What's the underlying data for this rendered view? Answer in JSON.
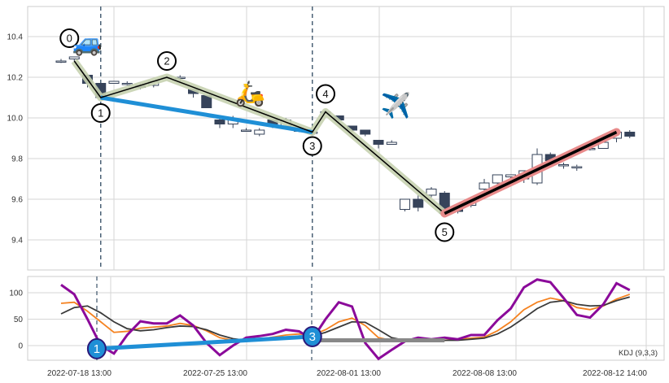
{
  "chart_data": [
    {
      "type": "candlestick",
      "ylim": [
        9.22,
        10.55
      ],
      "yticks": [
        "9.4",
        "9.6",
        "9.8",
        "10.0",
        "10.2",
        "10.4"
      ],
      "grid": true,
      "candles": [
        [
          10.28,
          10.28,
          10.29,
          10.27
        ],
        [
          10.29,
          10.3,
          10.3,
          10.28
        ],
        [
          10.21,
          10.17,
          10.21,
          10.15
        ],
        [
          10.17,
          10.1,
          10.17,
          10.09
        ],
        [
          10.17,
          10.18,
          10.18,
          10.17
        ],
        [
          10.17,
          10.17,
          10.18,
          10.16
        ],
        [
          10.16,
          10.15,
          10.17,
          10.14
        ],
        [
          10.16,
          10.18,
          10.18,
          10.15
        ],
        [
          10.2,
          10.2,
          10.21,
          10.19
        ],
        [
          10.2,
          10.2,
          10.21,
          10.18
        ],
        [
          10.14,
          10.12,
          10.14,
          10.1
        ],
        [
          10.11,
          10.05,
          10.11,
          10.05
        ],
        [
          9.99,
          9.97,
          10.0,
          9.95
        ],
        [
          9.97,
          9.99,
          10.01,
          9.95
        ],
        [
          9.94,
          9.94,
          9.95,
          9.94
        ],
        [
          9.92,
          9.94,
          9.95,
          9.91
        ],
        [
          9.99,
          9.96,
          9.99,
          9.95
        ],
        [
          9.96,
          9.99,
          10.0,
          9.95
        ],
        [
          9.94,
          9.94,
          9.95,
          9.93
        ],
        [
          9.93,
          9.93,
          9.94,
          9.92
        ],
        [
          10.03,
          10.03,
          10.04,
          10.02
        ],
        [
          10.01,
          9.99,
          10.01,
          9.98
        ],
        [
          9.96,
          9.94,
          9.96,
          9.93
        ],
        [
          9.94,
          9.92,
          9.94,
          9.91
        ],
        [
          9.89,
          9.87,
          9.89,
          9.85
        ],
        [
          9.87,
          9.88,
          9.89,
          9.87
        ],
        [
          9.55,
          9.6,
          9.6,
          9.54
        ],
        [
          9.6,
          9.56,
          9.62,
          9.54
        ],
        [
          9.62,
          9.65,
          9.66,
          9.61
        ],
        [
          9.63,
          9.53,
          9.64,
          9.52
        ],
        [
          9.55,
          9.54,
          9.57,
          9.53
        ],
        [
          9.57,
          9.59,
          9.61,
          9.56
        ],
        [
          9.65,
          9.68,
          9.7,
          9.64
        ],
        [
          9.68,
          9.72,
          9.72,
          9.66
        ],
        [
          9.71,
          9.72,
          9.72,
          9.7
        ],
        [
          9.7,
          9.74,
          9.74,
          9.68
        ],
        [
          9.68,
          9.82,
          9.85,
          9.67
        ],
        [
          9.82,
          9.79,
          9.83,
          9.78
        ],
        [
          9.77,
          9.77,
          9.78,
          9.75
        ],
        [
          9.76,
          9.76,
          9.77,
          9.74
        ],
        [
          9.85,
          9.85,
          9.86,
          9.84
        ],
        [
          9.85,
          9.88,
          9.88,
          9.85
        ],
        [
          9.9,
          9.93,
          9.94,
          9.88
        ],
        [
          9.93,
          9.91,
          9.94,
          9.9
        ]
      ],
      "pivots": [
        {
          "label": "0",
          "i": 1,
          "v": 10.28
        },
        {
          "label": "1",
          "i": 3,
          "v": 10.1
        },
        {
          "label": "2",
          "i": 8,
          "v": 10.2
        },
        {
          "label": "3",
          "i": 19,
          "v": 9.93
        },
        {
          "label": "4",
          "i": 20,
          "v": 10.03
        },
        {
          "label": "5",
          "i": 29,
          "v": 9.53
        }
      ],
      "trend_end": {
        "i": 42,
        "v": 9.93
      },
      "blue_line": [
        1,
        3
      ],
      "red_line": {
        "from": 5
      },
      "vlines": [
        3,
        19
      ],
      "emojis": [
        {
          "name": "car",
          "glyph": "🚙",
          "i": 2,
          "v": 10.33
        },
        {
          "name": "scooter",
          "glyph": "🛵",
          "i": 14.3,
          "v": 10.08
        },
        {
          "name": "airplane",
          "glyph": "✈️",
          "i": 25.3,
          "v": 10.02
        }
      ],
      "colors": {
        "up": "#ffffff",
        "down": "#36435a",
        "pivot_line": "#000000",
        "pivot_band": "#c7d1b0",
        "blue": "#1f8fd6",
        "red": "#e88a8a"
      }
    },
    {
      "type": "line",
      "label": "KDJ (9,3,3)",
      "yticks": [
        "0",
        "50",
        "100"
      ],
      "ylim": [
        -30,
        135
      ],
      "xticks": [
        "2022-07-18 13:00",
        "2022-07-25 13:00",
        "2022-08-01 13:00",
        "2022-08-08 13:00",
        "2022-08-12 14:00"
      ],
      "series": [
        {
          "key": "K",
          "color": "#f58220",
          "values": [
            80,
            82,
            65,
            45,
            25,
            27,
            33,
            35,
            37,
            42,
            38,
            28,
            15,
            10,
            10,
            12,
            16,
            20,
            22,
            20,
            30,
            45,
            52,
            38,
            15,
            10,
            10,
            10,
            10,
            10,
            12,
            14,
            16,
            28,
            45,
            68,
            82,
            90,
            85,
            72,
            68,
            75,
            88,
            97
          ]
        },
        {
          "key": "D",
          "color": "#3a3a3a",
          "values": [
            60,
            72,
            75,
            62,
            45,
            32,
            28,
            30,
            34,
            37,
            36,
            30,
            20,
            13,
            10,
            10,
            12,
            15,
            18,
            18,
            25,
            35,
            45,
            44,
            30,
            15,
            10,
            10,
            10,
            10,
            10,
            12,
            14,
            22,
            35,
            52,
            70,
            82,
            85,
            78,
            75,
            76,
            85,
            92
          ]
        },
        {
          "key": "J",
          "color": "#8b0a9a",
          "values": [
            115,
            97,
            50,
            0,
            -15,
            20,
            46,
            42,
            42,
            57,
            38,
            5,
            -18,
            0,
            15,
            18,
            22,
            30,
            27,
            12,
            50,
            82,
            74,
            5,
            -25,
            -8,
            8,
            15,
            12,
            15,
            12,
            20,
            20,
            48,
            70,
            110,
            125,
            120,
            90,
            58,
            53,
            78,
            118,
            105
          ]
        }
      ],
      "markers": [
        {
          "label": "1",
          "i": 2.7,
          "v": -6
        },
        {
          "label": "3",
          "i": 19,
          "v": 17
        }
      ],
      "gray_line": {
        "from_i": 19,
        "to_i": 29,
        "v": 10
      }
    }
  ]
}
